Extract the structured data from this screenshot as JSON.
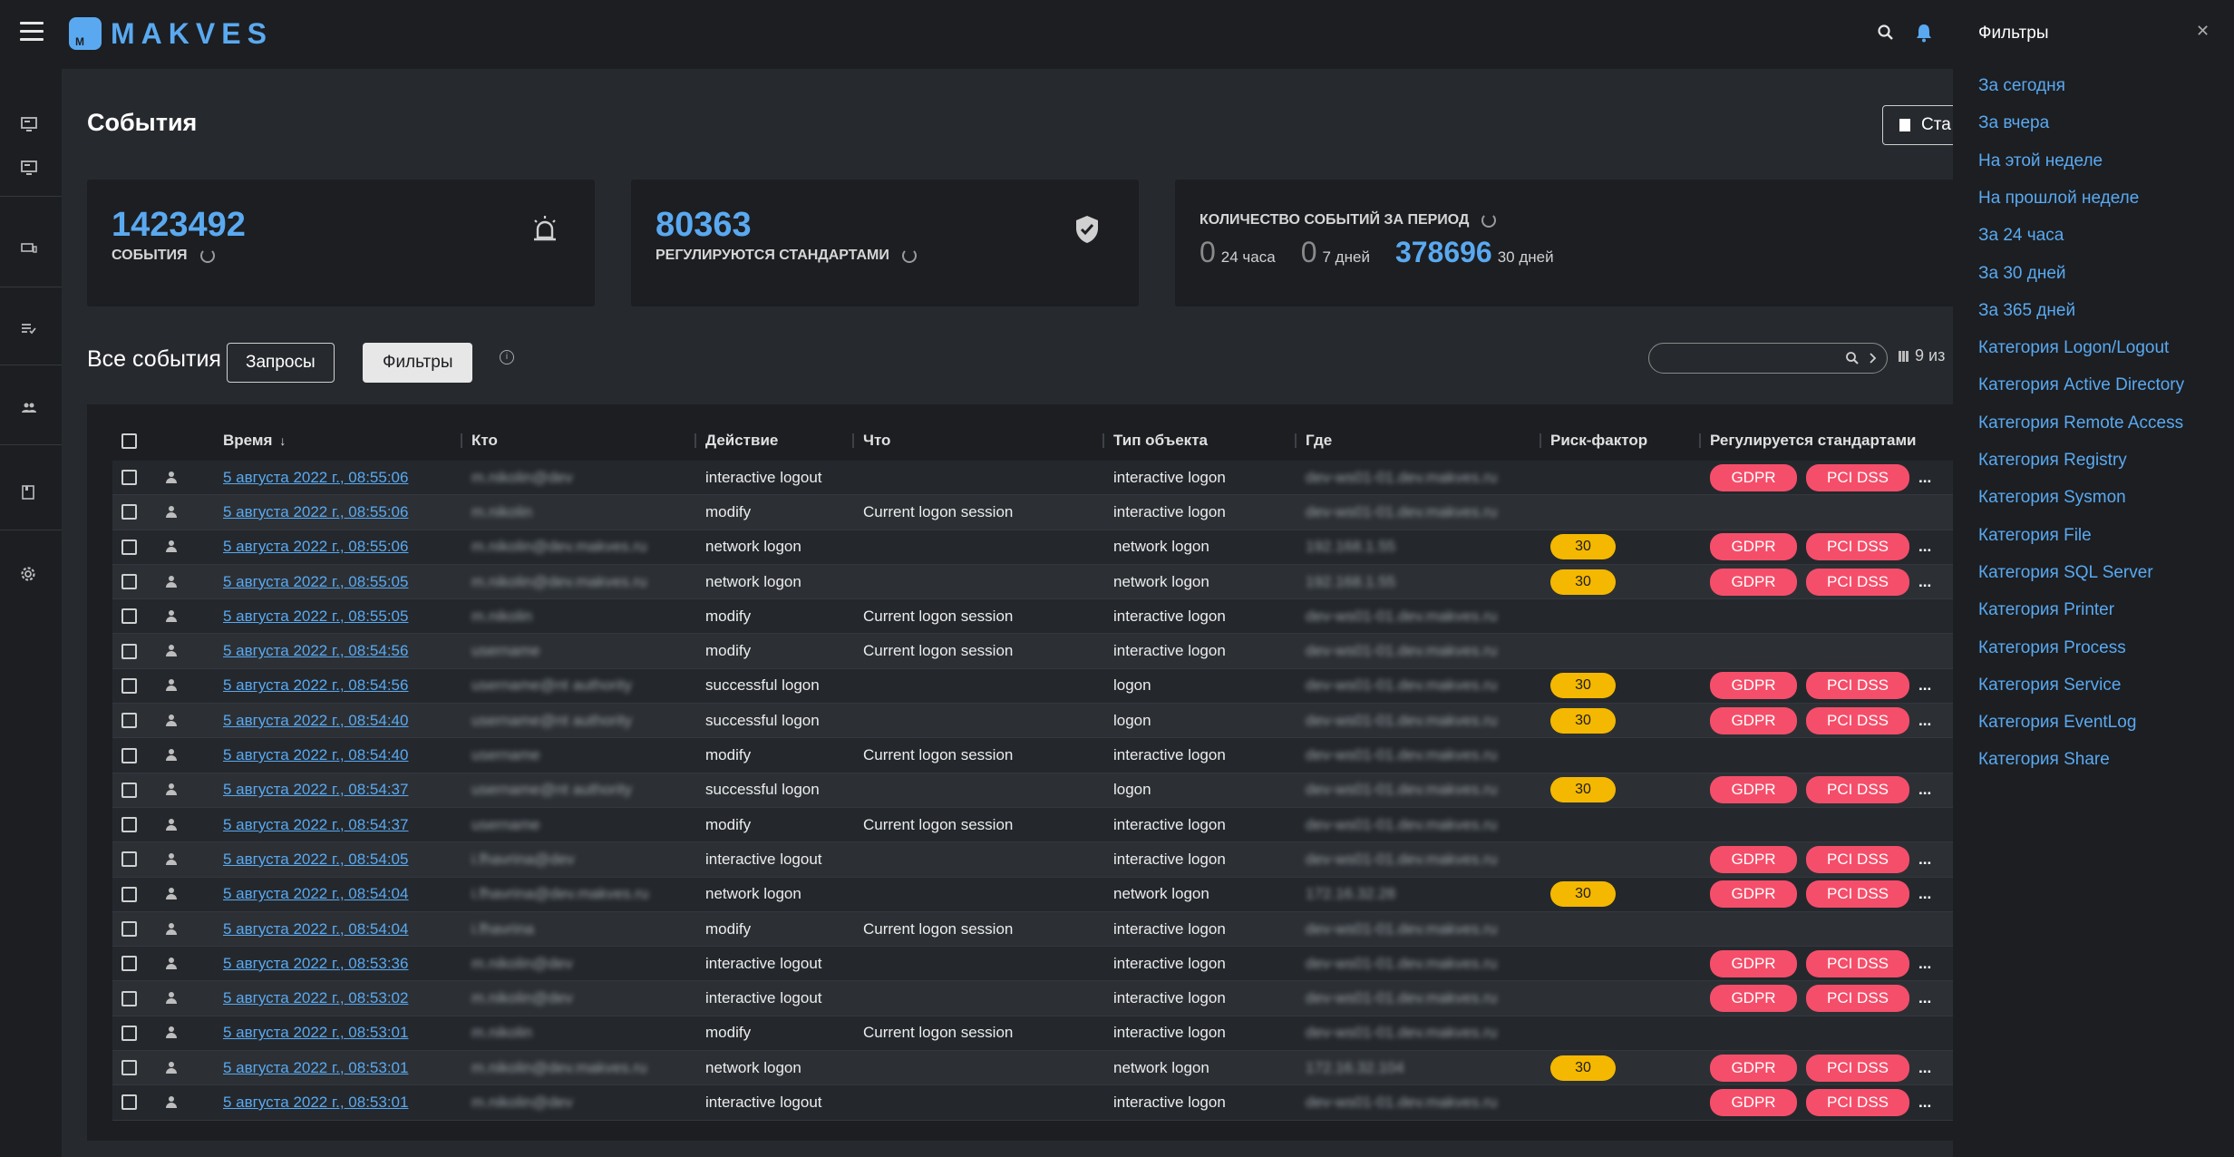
{
  "app": {
    "logo_text": "MAKVES"
  },
  "page": {
    "title": "События",
    "top_button_label": "Ста"
  },
  "cards": {
    "events": {
      "value": "1423492",
      "label": "СОБЫТИЯ"
    },
    "regulated": {
      "value": "80363",
      "label": "РЕГУЛИРУЮТСЯ СТАНДАРТАМИ"
    },
    "period": {
      "label": "КОЛИЧЕСТВО СОБЫТИЙ ЗА ПЕРИОД",
      "items": [
        {
          "value": "0",
          "caption": "24 часа"
        },
        {
          "value": "0",
          "caption": "7 дней"
        },
        {
          "value": "378696",
          "caption": "30 дней"
        }
      ]
    }
  },
  "events_section": {
    "title": "Все события",
    "queries_label": "Запросы",
    "filters_label": "Фильтры",
    "columns_info": "9 из",
    "search_placeholder": ""
  },
  "table": {
    "columns": [
      "Время",
      "Кто",
      "Действие",
      "Что",
      "Тип объекта",
      "Где",
      "Риск-фактор",
      "Регулируется стандартами"
    ],
    "rows": [
      {
        "time": "5 августа 2022 г., 08:55:06",
        "who": "m.nikolin@dev",
        "action": "interactive logout",
        "what": "",
        "type": "interactive logon",
        "where": "dev-ws01-01.dev.makves.ru",
        "risk": "",
        "std": [
          "GDPR",
          "PCI DSS"
        ]
      },
      {
        "time": "5 августа 2022 г., 08:55:06",
        "who": "m.nikolin",
        "action": "modify",
        "what": "Current logon session",
        "type": "interactive logon",
        "where": "dev-ws01-01.dev.makves.ru",
        "risk": "",
        "std": []
      },
      {
        "time": "5 августа 2022 г., 08:55:06",
        "who": "m.nikolin@dev.makves.ru",
        "action": "network logon",
        "what": "",
        "type": "network logon",
        "where": "192.168.1.55",
        "risk": "30",
        "std": [
          "GDPR",
          "PCI DSS"
        ]
      },
      {
        "time": "5 августа 2022 г., 08:55:05",
        "who": "m.nikolin@dev.makves.ru",
        "action": "network logon",
        "what": "",
        "type": "network logon",
        "where": "192.168.1.55",
        "risk": "30",
        "std": [
          "GDPR",
          "PCI DSS"
        ]
      },
      {
        "time": "5 августа 2022 г., 08:55:05",
        "who": "m.nikolin",
        "action": "modify",
        "what": "Current logon session",
        "type": "interactive logon",
        "where": "dev-ws01-01.dev.makves.ru",
        "risk": "",
        "std": []
      },
      {
        "time": "5 августа 2022 г., 08:54:56",
        "who": "username",
        "action": "modify",
        "what": "Current logon session",
        "type": "interactive logon",
        "where": "dev-ws01-01.dev.makves.ru",
        "risk": "",
        "std": []
      },
      {
        "time": "5 августа 2022 г., 08:54:56",
        "who": "username@nt authority",
        "action": "successful logon",
        "what": "",
        "type": "logon",
        "where": "dev-ws01-01.dev.makves.ru",
        "risk": "30",
        "std": [
          "GDPR",
          "PCI DSS"
        ]
      },
      {
        "time": "5 августа 2022 г., 08:54:40",
        "who": "username@nt authority",
        "action": "successful logon",
        "what": "",
        "type": "logon",
        "where": "dev-ws01-01.dev.makves.ru",
        "risk": "30",
        "std": [
          "GDPR",
          "PCI DSS"
        ]
      },
      {
        "time": "5 августа 2022 г., 08:54:40",
        "who": "username",
        "action": "modify",
        "what": "Current logon session",
        "type": "interactive logon",
        "where": "dev-ws01-01.dev.makves.ru",
        "risk": "",
        "std": []
      },
      {
        "time": "5 августа 2022 г., 08:54:37",
        "who": "username@nt authority",
        "action": "successful logon",
        "what": "",
        "type": "logon",
        "where": "dev-ws01-01.dev.makves.ru",
        "risk": "30",
        "std": [
          "GDPR",
          "PCI DSS"
        ]
      },
      {
        "time": "5 августа 2022 г., 08:54:37",
        "who": "username",
        "action": "modify",
        "what": "Current logon session",
        "type": "interactive logon",
        "where": "dev-ws01-01.dev.makves.ru",
        "risk": "",
        "std": []
      },
      {
        "time": "5 августа 2022 г., 08:54:05",
        "who": "i.fhavrina@dev",
        "action": "interactive logout",
        "what": "",
        "type": "interactive logon",
        "where": "dev-ws01-01.dev.makves.ru",
        "risk": "",
        "std": [
          "GDPR",
          "PCI DSS"
        ]
      },
      {
        "time": "5 августа 2022 г., 08:54:04",
        "who": "i.fhavrina@dev.makves.ru",
        "action": "network logon",
        "what": "",
        "type": "network logon",
        "where": "172.16.32.28",
        "risk": "30",
        "std": [
          "GDPR",
          "PCI DSS"
        ]
      },
      {
        "time": "5 августа 2022 г., 08:54:04",
        "who": "i.fhavrina",
        "action": "modify",
        "what": "Current logon session",
        "type": "interactive logon",
        "where": "dev-ws01-01.dev.makves.ru",
        "risk": "",
        "std": []
      },
      {
        "time": "5 августа 2022 г., 08:53:36",
        "who": "m.nikolin@dev",
        "action": "interactive logout",
        "what": "",
        "type": "interactive logon",
        "where": "dev-ws01-01.dev.makves.ru",
        "risk": "",
        "std": [
          "GDPR",
          "PCI DSS"
        ]
      },
      {
        "time": "5 августа 2022 г., 08:53:02",
        "who": "m.nikolin@dev",
        "action": "interactive logout",
        "what": "",
        "type": "interactive logon",
        "where": "dev-ws01-01.dev.makves.ru",
        "risk": "",
        "std": [
          "GDPR",
          "PCI DSS"
        ]
      },
      {
        "time": "5 августа 2022 г., 08:53:01",
        "who": "m.nikolin",
        "action": "modify",
        "what": "Current logon session",
        "type": "interactive logon",
        "where": "dev-ws01-01.dev.makves.ru",
        "risk": "",
        "std": []
      },
      {
        "time": "5 августа 2022 г., 08:53:01",
        "who": "m.nikolin@dev.makves.ru",
        "action": "network logon",
        "what": "",
        "type": "network logon",
        "where": "172.16.32.104",
        "risk": "30",
        "std": [
          "GDPR",
          "PCI DSS"
        ]
      },
      {
        "time": "5 августа 2022 г., 08:53:01",
        "who": "m.nikolin@dev",
        "action": "interactive logout",
        "what": "",
        "type": "interactive logon",
        "where": "dev-ws01-01.dev.makves.ru",
        "risk": "",
        "std": [
          "GDPR",
          "PCI DSS"
        ]
      }
    ]
  },
  "filters_panel": {
    "title": "Фильтры",
    "items": [
      "За сегодня",
      "За вчера",
      "На этой неделе",
      "На прошлой неделе",
      "За 24 часа",
      "За 30 дней",
      "За 365 дней",
      "Категория Logon/Logout",
      "Категория Active Directory",
      "Категория Remote Access",
      "Категория Registry",
      "Категория Sysmon",
      "Категория File",
      "Категория SQL Server",
      "Категория Printer",
      "Категория Process",
      "Категория Service",
      "Категория EventLog",
      "Категория Share"
    ]
  },
  "colors": {
    "accent": "#5aa9f0",
    "risk": "#f5b800",
    "standard": "#f54e6a"
  },
  "icons": {
    "topbar": [
      "menu-icon",
      "search-icon",
      "bell-icon"
    ],
    "sidebar": [
      "monitor-icon",
      "monitor-icon",
      "devices-icon",
      "checklist-icon",
      "users-icon",
      "book-icon",
      "gear-icon"
    ]
  }
}
